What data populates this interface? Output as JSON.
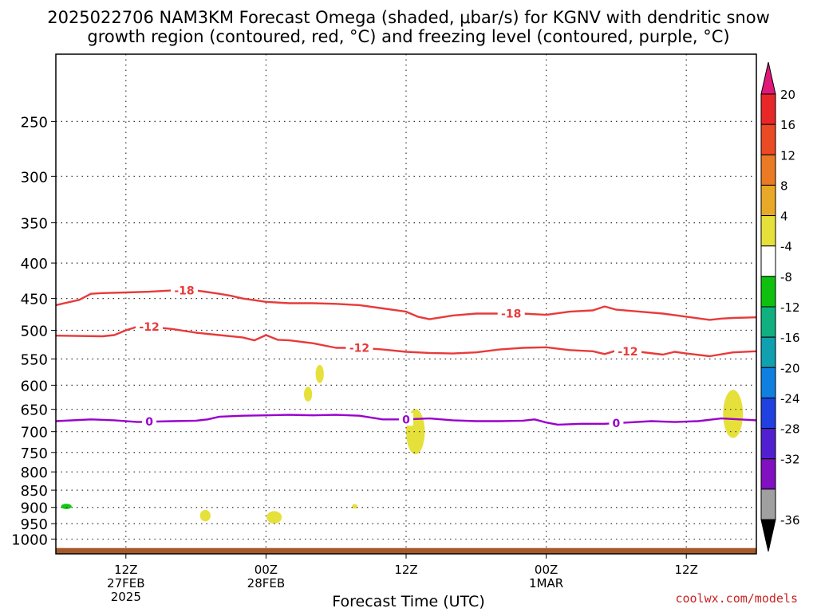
{
  "title_line1": "2025022706 NAM3KM Forecast Omega (shaded, μbar/s) for KGNV with dendritic snow",
  "title_line2": "growth region (contoured, red, °C) and freezing level (contoured, purple, °C)",
  "watermark": "coolwx.com/models",
  "chart_data": {
    "type": "contour",
    "xlabel": "Forecast Time (UTC)",
    "ylabel": "",
    "x_range_hours": [
      0,
      60
    ],
    "y_axis": {
      "scale": "log",
      "reversed": true,
      "range_hPa": [
        1050,
        200
      ],
      "ticks": [
        250,
        300,
        350,
        400,
        450,
        500,
        550,
        600,
        650,
        700,
        750,
        800,
        850,
        900,
        950,
        1000
      ]
    },
    "x_ticks": [
      {
        "hour": 6,
        "lines": [
          "12Z",
          "27FEB",
          "2025"
        ]
      },
      {
        "hour": 18,
        "lines": [
          "00Z",
          "28FEB"
        ]
      },
      {
        "hour": 30,
        "lines": [
          "12Z"
        ]
      },
      {
        "hour": 42,
        "lines": [
          "00Z",
          "1MAR"
        ]
      },
      {
        "hour": 54,
        "lines": [
          "12Z"
        ]
      }
    ],
    "grid": true,
    "contours": [
      {
        "level": "-18",
        "color": "#e83a3a",
        "points": [
          [
            0,
            460
          ],
          [
            2,
            452
          ],
          [
            3,
            443
          ],
          [
            4,
            442
          ],
          [
            6,
            441
          ],
          [
            8,
            440
          ],
          [
            10,
            438
          ],
          [
            12,
            438
          ],
          [
            14,
            443
          ],
          [
            15,
            446
          ],
          [
            16,
            450
          ],
          [
            18,
            455
          ],
          [
            20,
            457
          ],
          [
            22,
            457
          ],
          [
            24,
            458
          ],
          [
            26,
            460
          ],
          [
            28,
            465
          ],
          [
            30,
            470
          ],
          [
            31,
            478
          ],
          [
            32,
            482
          ],
          [
            34,
            476
          ],
          [
            36,
            473
          ],
          [
            38,
            473
          ],
          [
            40,
            473
          ],
          [
            42,
            475
          ],
          [
            44,
            470
          ],
          [
            46,
            468
          ],
          [
            47,
            462
          ],
          [
            48,
            467
          ],
          [
            50,
            470
          ],
          [
            52,
            473
          ],
          [
            54,
            478
          ],
          [
            56,
            483
          ],
          [
            57,
            481
          ],
          [
            58,
            480
          ],
          [
            60,
            479
          ]
        ],
        "labels": [
          [
            11,
            438
          ],
          [
            39,
            473
          ]
        ]
      },
      {
        "level": "-12",
        "color": "#e83a3a",
        "points": [
          [
            0,
            509
          ],
          [
            4,
            510
          ],
          [
            5,
            508
          ],
          [
            6,
            500
          ],
          [
            7,
            494
          ],
          [
            8,
            494
          ],
          [
            10,
            498
          ],
          [
            12,
            504
          ],
          [
            14,
            508
          ],
          [
            16,
            512
          ],
          [
            17,
            517
          ],
          [
            18,
            508
          ],
          [
            19,
            516
          ],
          [
            20,
            517
          ],
          [
            22,
            522
          ],
          [
            24,
            530
          ],
          [
            26,
            530
          ],
          [
            28,
            533
          ],
          [
            30,
            537
          ],
          [
            32,
            539
          ],
          [
            34,
            540
          ],
          [
            36,
            538
          ],
          [
            38,
            533
          ],
          [
            40,
            530
          ],
          [
            42,
            529
          ],
          [
            44,
            534
          ],
          [
            46,
            536
          ],
          [
            47,
            541
          ],
          [
            48,
            535
          ],
          [
            50,
            537
          ],
          [
            52,
            542
          ],
          [
            53,
            537
          ],
          [
            54,
            540
          ],
          [
            56,
            545
          ],
          [
            58,
            538
          ],
          [
            60,
            536
          ]
        ],
        "labels": [
          [
            8,
            494
          ],
          [
            26,
            530
          ],
          [
            49,
            533
          ]
        ]
      },
      {
        "level": "0",
        "color": "#9900cc",
        "points": [
          [
            0,
            676
          ],
          [
            3,
            672
          ],
          [
            5,
            674
          ],
          [
            7,
            678
          ],
          [
            10,
            676
          ],
          [
            12,
            675
          ],
          [
            13,
            672
          ],
          [
            14,
            666
          ],
          [
            16,
            664
          ],
          [
            18,
            663
          ],
          [
            20,
            662
          ],
          [
            22,
            663
          ],
          [
            24,
            662
          ],
          [
            26,
            664
          ],
          [
            28,
            672
          ],
          [
            30,
            672
          ],
          [
            31,
            671
          ],
          [
            32,
            670
          ],
          [
            34,
            674
          ],
          [
            36,
            676
          ],
          [
            38,
            676
          ],
          [
            40,
            675
          ],
          [
            41,
            672
          ],
          [
            42,
            679
          ],
          [
            43,
            684
          ],
          [
            45,
            682
          ],
          [
            47,
            682
          ],
          [
            49,
            679
          ],
          [
            51,
            676
          ],
          [
            53,
            678
          ],
          [
            55,
            676
          ],
          [
            57,
            670
          ],
          [
            60,
            674
          ]
        ],
        "labels": [
          [
            8,
            678
          ],
          [
            30,
            672
          ],
          [
            48,
            683
          ]
        ]
      }
    ],
    "shaded_regions": [
      {
        "value": 4,
        "color": "#e6e03a",
        "center": [
          22.6,
          578
        ],
        "size": [
          0.7,
          35
        ]
      },
      {
        "value": 4,
        "color": "#e6e03a",
        "center": [
          21.6,
          618
        ],
        "size": [
          0.7,
          30
        ]
      },
      {
        "value": 4,
        "color": "#e6e03a",
        "center": [
          30.8,
          700
        ],
        "size": [
          1.6,
          105
        ]
      },
      {
        "value": 4,
        "color": "#e6e03a",
        "center": [
          58.0,
          660
        ],
        "size": [
          1.7,
          105
        ]
      },
      {
        "value": 4,
        "color": "#e6e03a",
        "center": [
          12.8,
          925
        ],
        "size": [
          0.9,
          35
        ]
      },
      {
        "value": 4,
        "color": "#e6e03a",
        "center": [
          18.7,
          930
        ],
        "size": [
          1.3,
          38
        ]
      },
      {
        "value": 4,
        "color": "#e6e03a",
        "center": [
          25.6,
          897
        ],
        "size": [
          0.45,
          14
        ]
      },
      {
        "value": -8,
        "color": "#11c811",
        "center": [
          0.9,
          897
        ],
        "size": [
          0.9,
          16
        ]
      }
    ],
    "terrain_color": "#a65a2a",
    "colorbar": {
      "labels": [
        "20",
        "16",
        "12",
        "8",
        "4",
        "-4",
        "-8",
        "-12",
        "-16",
        "-20",
        "-24",
        "-28",
        "-32",
        "-36"
      ],
      "top_triangle_color": "#e0187a",
      "bottom_triangle_color": "#000000",
      "bins": [
        "#e82828",
        "#ea4a24",
        "#ea7a24",
        "#e8a828",
        "#e6e03a",
        "#ffffff",
        "#10c010",
        "#10b080",
        "#10a0b0",
        "#1080e0",
        "#2040e0",
        "#5020d0",
        "#8010c0",
        "#a0a0a0"
      ]
    }
  }
}
